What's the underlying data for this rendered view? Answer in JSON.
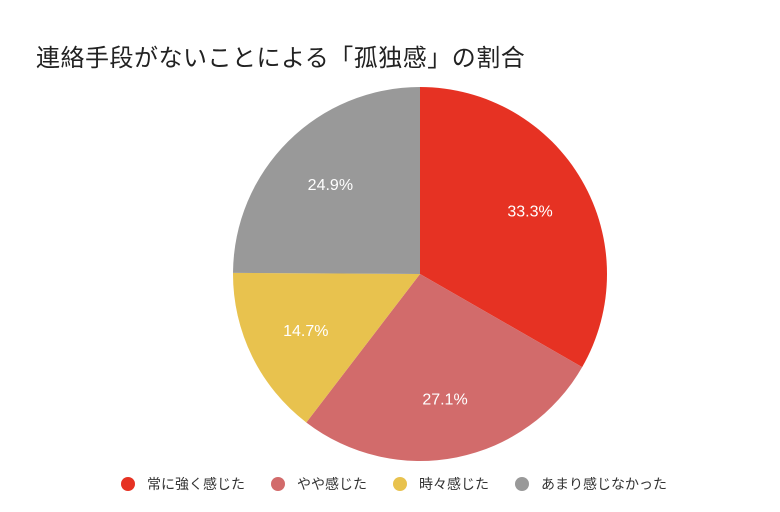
{
  "title": "連絡手段がないことによる「孤独感」の割合",
  "chart_data": {
    "type": "pie",
    "title": "連絡手段がないことによる「孤独感」の割合",
    "categories": [
      "常に強く感じた",
      "やや感じた",
      "時々感じた",
      "あまり感じなかった"
    ],
    "values": [
      33.3,
      27.1,
      14.7,
      24.9
    ],
    "labels": [
      "33.3%",
      "27.1%",
      "14.7%",
      "24.9%"
    ],
    "colors": [
      "#e63223",
      "#d26b6b",
      "#e8c24e",
      "#999999"
    ],
    "start_angle": "12 o'clock, clockwise",
    "legend_position": "bottom"
  },
  "legend": [
    {
      "label": "常に強く感じた",
      "color": "#e63223"
    },
    {
      "label": "やや感じた",
      "color": "#d26b6b"
    },
    {
      "label": "時々感じた",
      "color": "#e8c24e"
    },
    {
      "label": "あまり感じなかった",
      "color": "#999999"
    }
  ]
}
